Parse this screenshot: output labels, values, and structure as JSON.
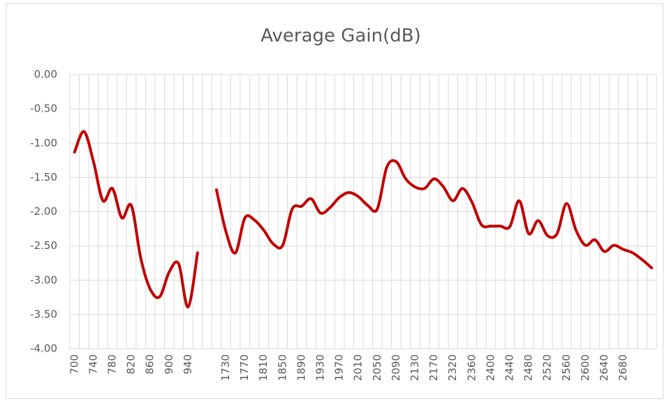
{
  "chart_data": {
    "type": "line",
    "title": "Average Gain(dB)",
    "categories": [
      "700",
      null,
      "740",
      null,
      "780",
      null,
      "820",
      null,
      "860",
      null,
      "900",
      null,
      "940",
      null,
      null,
      null,
      "1730",
      null,
      "1770",
      null,
      "1810",
      null,
      "1850",
      null,
      "1890",
      null,
      "1930",
      null,
      "1970",
      null,
      "2010",
      null,
      "2050",
      null,
      "2090",
      null,
      "2130",
      null,
      "2170",
      null,
      "2320",
      null,
      "2360",
      null,
      "2400",
      null,
      "2440",
      null,
      "2480",
      null,
      "2520",
      null,
      "2560",
      null,
      "2600",
      null,
      "2640",
      null,
      "2680",
      null,
      null,
      null
    ],
    "series": [
      {
        "name": "Average Gain(dB)",
        "color": "#c00000",
        "values": [
          -1.13,
          -0.83,
          -1.27,
          -1.84,
          -1.66,
          -2.09,
          -1.91,
          -2.68,
          -3.13,
          -3.24,
          -2.88,
          -2.76,
          -3.39,
          -2.6,
          null,
          -1.68,
          -2.29,
          -2.6,
          -2.09,
          -2.12,
          -2.27,
          -2.47,
          -2.49,
          -1.96,
          -1.92,
          -1.81,
          -2.02,
          -1.94,
          -1.79,
          -1.72,
          -1.78,
          -1.91,
          -1.96,
          -1.35,
          -1.27,
          -1.52,
          -1.64,
          -1.66,
          -1.52,
          -1.64,
          -1.84,
          -1.66,
          -1.86,
          -2.19,
          -2.21,
          -2.21,
          -2.22,
          -1.84,
          -2.32,
          -2.13,
          -2.35,
          -2.32,
          -1.88,
          -2.27,
          -2.49,
          -2.41,
          -2.58,
          -2.49,
          -2.55,
          -2.6,
          -2.7,
          -2.82
        ]
      }
    ],
    "ylim": [
      -4,
      0
    ],
    "yticks": [
      {
        "value": -4,
        "label": "-4.00"
      },
      {
        "value": -3.5,
        "label": "-3.50"
      },
      {
        "value": -3,
        "label": "-3.00"
      },
      {
        "value": -2.5,
        "label": "-2.50"
      },
      {
        "value": -2,
        "label": "-2.00"
      },
      {
        "value": -1.5,
        "label": "-1.50"
      },
      {
        "value": -1,
        "label": "-1.00"
      },
      {
        "value": -0.5,
        "label": "-0.50"
      },
      {
        "value": 0,
        "label": "0.00"
      }
    ],
    "grid": true
  }
}
